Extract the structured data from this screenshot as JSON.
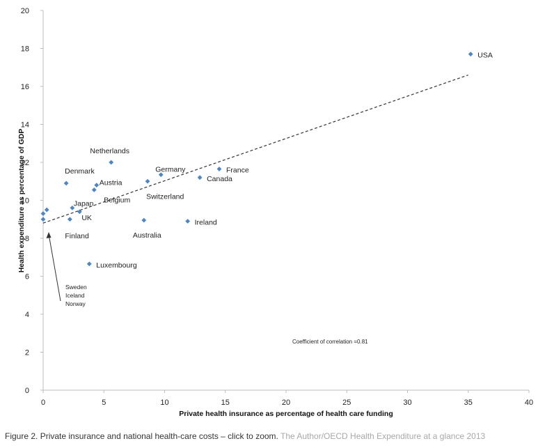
{
  "chart_data": {
    "type": "scatter",
    "xlabel": "Private health insurance as percentage of health care funding",
    "ylabel": "Health expenditure as percentage of GDP",
    "xlim": [
      0,
      40
    ],
    "ylim": [
      0,
      20
    ],
    "xticks": [
      0,
      5,
      10,
      15,
      20,
      25,
      30,
      35,
      40
    ],
    "yticks": [
      0,
      2,
      4,
      6,
      8,
      10,
      12,
      14,
      16,
      18,
      20
    ],
    "marker_color": "#4a86c8",
    "trendline": {
      "x": [
        0,
        35
      ],
      "y": [
        8.8,
        16.6
      ],
      "style": "dashed"
    },
    "annotation": "Coefficient of correlation =0.81",
    "unlabeled_group": [
      "Sweden",
      "Iceland",
      "Norway"
    ],
    "points": [
      {
        "label": "USA",
        "x": 35.2,
        "y": 17.7
      },
      {
        "label": "Netherlands",
        "x": 5.6,
        "y": 12.0
      },
      {
        "label": "France",
        "x": 14.5,
        "y": 11.65
      },
      {
        "label": "Germany",
        "x": 9.7,
        "y": 11.35
      },
      {
        "label": "Canada",
        "x": 12.9,
        "y": 11.2
      },
      {
        "label": "Switzerland",
        "x": 8.6,
        "y": 11.0
      },
      {
        "label": "Denmark",
        "x": 1.9,
        "y": 10.9
      },
      {
        "label": "Austria",
        "x": 4.4,
        "y": 10.8
      },
      {
        "label": "Belgium",
        "x": 4.2,
        "y": 10.55
      },
      {
        "label": "Japan",
        "x": 2.4,
        "y": 9.6
      },
      {
        "label": "UK",
        "x": 3.0,
        "y": 9.4
      },
      {
        "label": "Finland",
        "x": 2.2,
        "y": 9.0
      },
      {
        "label": "Australia",
        "x": 8.3,
        "y": 8.95
      },
      {
        "label": "Ireland",
        "x": 11.9,
        "y": 8.9
      },
      {
        "label": "Luxembourg",
        "x": 3.8,
        "y": 6.65
      },
      {
        "label": "",
        "x": 0.0,
        "y": 9.3
      },
      {
        "label": "",
        "x": 0.3,
        "y": 9.5
      },
      {
        "label": "",
        "x": 0.0,
        "y": 9.0
      }
    ]
  },
  "caption": {
    "main": "Figure 2. Private insurance and national health-care costs – click to zoom.",
    "source": "The Author/OECD Health Expenditure at a glance 2013"
  }
}
